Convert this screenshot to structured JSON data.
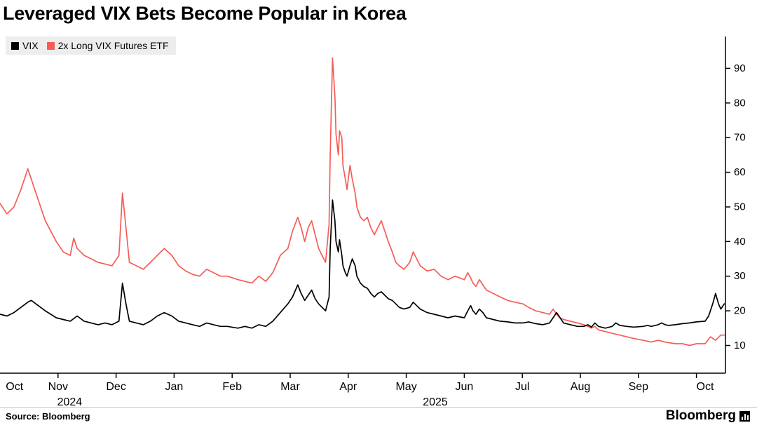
{
  "title": "Leveraged VIX Bets Become Popular in Korea",
  "legend": {
    "items": [
      {
        "label": "VIX",
        "color": "#000000"
      },
      {
        "label": "2x Long VIX Futures ETF",
        "color": "#f55d57"
      }
    ]
  },
  "footer": {
    "source": "Source: Bloomberg",
    "brand": "Bloomberg"
  },
  "chart_data": {
    "type": "line",
    "title": "Leveraged VIX Bets Become Popular in Korea",
    "x_unit": "months since Oct 2024",
    "xlim": [
      0,
      12.5
    ],
    "ylim": [
      2,
      99.2
    ],
    "y_ticks": [
      10,
      20,
      30,
      40,
      50,
      60,
      70,
      80,
      90
    ],
    "y_axis_side": "right",
    "grid": false,
    "x_tick_positions": [
      1,
      2,
      3,
      4,
      5,
      6,
      7,
      8,
      9,
      10,
      11,
      12
    ],
    "x_labels": [
      {
        "t": 0.25,
        "text": "Oct"
      },
      {
        "t": 1.0,
        "text": "Nov"
      },
      {
        "t": 2.0,
        "text": "Dec"
      },
      {
        "t": 3.0,
        "text": "Jan"
      },
      {
        "t": 4.0,
        "text": "Feb"
      },
      {
        "t": 5.0,
        "text": "Mar"
      },
      {
        "t": 6.0,
        "text": "Apr"
      },
      {
        "t": 7.0,
        "text": "May"
      },
      {
        "t": 8.0,
        "text": "Jun"
      },
      {
        "t": 9.0,
        "text": "Jul"
      },
      {
        "t": 10.0,
        "text": "Aug"
      },
      {
        "t": 11.0,
        "text": "Sep"
      },
      {
        "t": 12.15,
        "text": "Oct"
      }
    ],
    "year_labels": [
      {
        "t": 1.2,
        "text": "2024"
      },
      {
        "t": 7.5,
        "text": "2025"
      }
    ],
    "series": [
      {
        "name": "VIX",
        "color": "#000000",
        "points": [
          [
            0.0,
            19.0
          ],
          [
            0.12,
            18.5
          ],
          [
            0.24,
            19.5
          ],
          [
            0.36,
            21.0
          ],
          [
            0.48,
            22.5
          ],
          [
            0.54,
            23.0
          ],
          [
            0.66,
            21.5
          ],
          [
            0.78,
            20.0
          ],
          [
            0.97,
            18.0
          ],
          [
            1.09,
            17.5
          ],
          [
            1.21,
            17.0
          ],
          [
            1.33,
            18.5
          ],
          [
            1.45,
            17.0
          ],
          [
            1.57,
            16.5
          ],
          [
            1.69,
            16.0
          ],
          [
            1.81,
            16.5
          ],
          [
            1.93,
            16.0
          ],
          [
            2.05,
            17.0
          ],
          [
            2.11,
            28.0
          ],
          [
            2.17,
            22.0
          ],
          [
            2.23,
            17.0
          ],
          [
            2.35,
            16.5
          ],
          [
            2.47,
            16.0
          ],
          [
            2.59,
            17.0
          ],
          [
            2.71,
            18.5
          ],
          [
            2.83,
            19.5
          ],
          [
            2.96,
            18.5
          ],
          [
            3.08,
            17.0
          ],
          [
            3.2,
            16.5
          ],
          [
            3.32,
            16.0
          ],
          [
            3.44,
            15.5
          ],
          [
            3.56,
            16.5
          ],
          [
            3.68,
            16.0
          ],
          [
            3.8,
            15.5
          ],
          [
            3.92,
            15.5
          ],
          [
            4.1,
            15.0
          ],
          [
            4.22,
            15.5
          ],
          [
            4.34,
            15.0
          ],
          [
            4.46,
            16.0
          ],
          [
            4.58,
            15.5
          ],
          [
            4.7,
            17.0
          ],
          [
            4.83,
            19.5
          ],
          [
            4.96,
            22.0
          ],
          [
            5.04,
            24.0
          ],
          [
            5.13,
            27.5
          ],
          [
            5.19,
            25.0
          ],
          [
            5.25,
            23.0
          ],
          [
            5.31,
            24.5
          ],
          [
            5.37,
            26.0
          ],
          [
            5.43,
            23.5
          ],
          [
            5.49,
            22.0
          ],
          [
            5.55,
            21.0
          ],
          [
            5.61,
            20.0
          ],
          [
            5.67,
            24.0
          ],
          [
            5.69,
            38.0
          ],
          [
            5.73,
            52.0
          ],
          [
            5.77,
            46.0
          ],
          [
            5.79,
            40.0
          ],
          [
            5.83,
            37.0
          ],
          [
            5.85,
            40.5
          ],
          [
            5.89,
            36.0
          ],
          [
            5.91,
            33.0
          ],
          [
            5.95,
            31.0
          ],
          [
            5.98,
            30.0
          ],
          [
            6.03,
            33.0
          ],
          [
            6.07,
            35.0
          ],
          [
            6.12,
            33.0
          ],
          [
            6.15,
            30.0
          ],
          [
            6.21,
            28.0
          ],
          [
            6.27,
            27.0
          ],
          [
            6.33,
            26.5
          ],
          [
            6.39,
            25.0
          ],
          [
            6.45,
            24.0
          ],
          [
            6.51,
            25.0
          ],
          [
            6.57,
            25.5
          ],
          [
            6.63,
            24.5
          ],
          [
            6.69,
            23.5
          ],
          [
            6.76,
            23.0
          ],
          [
            6.82,
            22.0
          ],
          [
            6.88,
            21.0
          ],
          [
            6.96,
            20.5
          ],
          [
            7.06,
            21.0
          ],
          [
            7.12,
            22.5
          ],
          [
            7.18,
            21.5
          ],
          [
            7.24,
            20.5
          ],
          [
            7.36,
            19.5
          ],
          [
            7.48,
            19.0
          ],
          [
            7.6,
            18.5
          ],
          [
            7.72,
            18.0
          ],
          [
            7.84,
            18.5
          ],
          [
            8.0,
            18.0
          ],
          [
            8.06,
            20.0
          ],
          [
            8.11,
            21.5
          ],
          [
            8.15,
            20.0
          ],
          [
            8.2,
            19.0
          ],
          [
            8.26,
            20.5
          ],
          [
            8.32,
            19.5
          ],
          [
            8.38,
            18.0
          ],
          [
            8.5,
            17.5
          ],
          [
            8.62,
            17.0
          ],
          [
            8.75,
            16.8
          ],
          [
            8.87,
            16.5
          ],
          [
            9.01,
            16.5
          ],
          [
            9.11,
            16.8
          ],
          [
            9.23,
            16.3
          ],
          [
            9.35,
            16.0
          ],
          [
            9.47,
            16.5
          ],
          [
            9.59,
            19.5
          ],
          [
            9.65,
            18.0
          ],
          [
            9.71,
            16.5
          ],
          [
            9.83,
            16.0
          ],
          [
            9.95,
            15.5
          ],
          [
            10.06,
            15.5
          ],
          [
            10.13,
            16.0
          ],
          [
            10.19,
            15.3
          ],
          [
            10.25,
            16.5
          ],
          [
            10.31,
            15.5
          ],
          [
            10.43,
            15.0
          ],
          [
            10.55,
            15.5
          ],
          [
            10.61,
            16.5
          ],
          [
            10.68,
            15.8
          ],
          [
            10.8,
            15.5
          ],
          [
            10.92,
            15.3
          ],
          [
            11.08,
            15.5
          ],
          [
            11.16,
            15.8
          ],
          [
            11.22,
            15.5
          ],
          [
            11.34,
            16.0
          ],
          [
            11.4,
            16.5
          ],
          [
            11.46,
            16.0
          ],
          [
            11.52,
            15.8
          ],
          [
            11.64,
            16.0
          ],
          [
            11.76,
            16.3
          ],
          [
            11.88,
            16.5
          ],
          [
            12.0,
            16.8
          ],
          [
            12.15,
            17.0
          ],
          [
            12.21,
            18.5
          ],
          [
            12.24,
            20.0
          ],
          [
            12.28,
            22.0
          ],
          [
            12.33,
            25.0
          ],
          [
            12.38,
            22.0
          ],
          [
            12.42,
            20.5
          ],
          [
            12.48,
            22.0
          ]
        ]
      },
      {
        "name": "2x Long VIX Futures ETF",
        "color": "#f55d57",
        "points": [
          [
            0.0,
            51
          ],
          [
            0.12,
            48
          ],
          [
            0.24,
            50
          ],
          [
            0.36,
            55
          ],
          [
            0.48,
            61
          ],
          [
            0.54,
            58
          ],
          [
            0.66,
            52
          ],
          [
            0.78,
            46
          ],
          [
            0.97,
            40
          ],
          [
            1.09,
            37
          ],
          [
            1.21,
            36
          ],
          [
            1.27,
            41
          ],
          [
            1.33,
            38
          ],
          [
            1.45,
            36
          ],
          [
            1.57,
            35
          ],
          [
            1.69,
            34
          ],
          [
            1.81,
            33.5
          ],
          [
            1.93,
            33
          ],
          [
            2.05,
            36
          ],
          [
            2.11,
            54
          ],
          [
            2.17,
            44
          ],
          [
            2.23,
            34
          ],
          [
            2.35,
            33
          ],
          [
            2.47,
            32
          ],
          [
            2.59,
            34
          ],
          [
            2.71,
            36
          ],
          [
            2.83,
            38
          ],
          [
            2.96,
            36
          ],
          [
            3.08,
            33
          ],
          [
            3.2,
            31.5
          ],
          [
            3.32,
            30.5
          ],
          [
            3.44,
            30
          ],
          [
            3.56,
            32
          ],
          [
            3.68,
            31
          ],
          [
            3.8,
            30
          ],
          [
            3.92,
            30
          ],
          [
            4.1,
            29
          ],
          [
            4.22,
            28.5
          ],
          [
            4.34,
            28
          ],
          [
            4.46,
            30
          ],
          [
            4.58,
            28.5
          ],
          [
            4.7,
            31
          ],
          [
            4.83,
            36
          ],
          [
            4.96,
            38
          ],
          [
            5.04,
            43
          ],
          [
            5.13,
            47
          ],
          [
            5.19,
            44
          ],
          [
            5.25,
            40
          ],
          [
            5.31,
            44
          ],
          [
            5.37,
            46
          ],
          [
            5.43,
            42
          ],
          [
            5.49,
            38
          ],
          [
            5.55,
            36
          ],
          [
            5.61,
            34
          ],
          [
            5.67,
            45
          ],
          [
            5.69,
            65
          ],
          [
            5.73,
            93
          ],
          [
            5.77,
            82
          ],
          [
            5.79,
            71
          ],
          [
            5.83,
            65
          ],
          [
            5.85,
            72
          ],
          [
            5.89,
            70
          ],
          [
            5.91,
            62
          ],
          [
            5.95,
            58
          ],
          [
            5.98,
            55
          ],
          [
            6.03,
            62
          ],
          [
            6.07,
            58
          ],
          [
            6.12,
            54
          ],
          [
            6.15,
            50
          ],
          [
            6.21,
            47
          ],
          [
            6.27,
            46
          ],
          [
            6.33,
            47
          ],
          [
            6.39,
            44
          ],
          [
            6.45,
            42
          ],
          [
            6.51,
            44
          ],
          [
            6.57,
            46
          ],
          [
            6.63,
            43
          ],
          [
            6.69,
            40
          ],
          [
            6.76,
            37
          ],
          [
            6.82,
            34
          ],
          [
            6.88,
            33
          ],
          [
            6.96,
            32
          ],
          [
            7.06,
            34
          ],
          [
            7.12,
            37
          ],
          [
            7.18,
            35
          ],
          [
            7.24,
            33
          ],
          [
            7.36,
            31.5
          ],
          [
            7.48,
            32
          ],
          [
            7.6,
            30
          ],
          [
            7.72,
            29
          ],
          [
            7.84,
            30
          ],
          [
            8.0,
            29
          ],
          [
            8.06,
            31
          ],
          [
            8.11,
            29.5
          ],
          [
            8.15,
            28
          ],
          [
            8.2,
            27
          ],
          [
            8.26,
            29
          ],
          [
            8.32,
            27.5
          ],
          [
            8.38,
            26
          ],
          [
            8.5,
            25
          ],
          [
            8.62,
            24
          ],
          [
            8.75,
            23
          ],
          [
            8.87,
            22.5
          ],
          [
            9.01,
            22
          ],
          [
            9.11,
            21
          ],
          [
            9.23,
            20
          ],
          [
            9.35,
            19.5
          ],
          [
            9.47,
            19
          ],
          [
            9.53,
            20.5
          ],
          [
            9.59,
            19
          ],
          [
            9.65,
            18
          ],
          [
            9.71,
            17.5
          ],
          [
            9.83,
            17
          ],
          [
            9.95,
            16.5
          ],
          [
            10.06,
            16
          ],
          [
            10.13,
            15.5
          ],
          [
            10.19,
            15
          ],
          [
            10.25,
            15.5
          ],
          [
            10.31,
            14.5
          ],
          [
            10.43,
            14
          ],
          [
            10.55,
            13.5
          ],
          [
            10.68,
            13
          ],
          [
            10.8,
            12.5
          ],
          [
            10.92,
            12
          ],
          [
            11.08,
            11.5
          ],
          [
            11.22,
            11
          ],
          [
            11.34,
            11.5
          ],
          [
            11.46,
            11
          ],
          [
            11.64,
            10.5
          ],
          [
            11.76,
            10.5
          ],
          [
            11.88,
            10
          ],
          [
            12.0,
            10.5
          ],
          [
            12.15,
            10.5
          ],
          [
            12.24,
            12.5
          ],
          [
            12.33,
            11.5
          ],
          [
            12.42,
            13
          ],
          [
            12.48,
            13
          ]
        ]
      }
    ]
  }
}
